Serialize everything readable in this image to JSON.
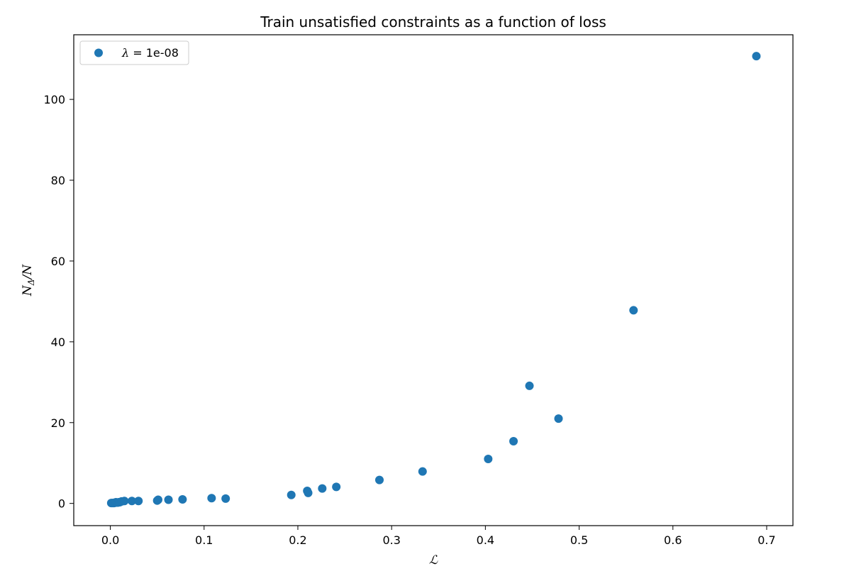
{
  "chart_data": {
    "type": "scatter",
    "title": "Train unsatisfied constraints as a function of loss",
    "xlabel": "ℒ",
    "ylabel_main": "N",
    "ylabel_sub": "Δ",
    "ylabel_tail": "/N",
    "xlim": [
      -0.039,
      0.728
    ],
    "ylim": [
      -5.5,
      116.0
    ],
    "xticks": [
      0.0,
      0.1,
      0.2,
      0.3,
      0.4,
      0.5,
      0.6,
      0.7
    ],
    "xtick_labels": [
      "0.0",
      "0.1",
      "0.2",
      "0.3",
      "0.4",
      "0.5",
      "0.6",
      "0.7"
    ],
    "yticks": [
      0,
      20,
      40,
      60,
      80,
      100
    ],
    "ytick_labels": [
      "0",
      "20",
      "40",
      "60",
      "80",
      "100"
    ],
    "grid": false,
    "legend_position": "top-left",
    "series": [
      {
        "name_symbol": "λ",
        "name_value": " = 1e-08",
        "color": "#1f77b4",
        "x": [
          0.001,
          0.002,
          0.003,
          0.004,
          0.005,
          0.006,
          0.007,
          0.008,
          0.009,
          0.01,
          0.012,
          0.015,
          0.023,
          0.03,
          0.05,
          0.051,
          0.062,
          0.077,
          0.108,
          0.123,
          0.193,
          0.21,
          0.211,
          0.226,
          0.241,
          0.287,
          0.333,
          0.403,
          0.43,
          0.447,
          0.478,
          0.558,
          0.689
        ],
        "y": [
          0.1,
          0.1,
          0.1,
          0.1,
          0.2,
          0.3,
          0.2,
          0.2,
          0.3,
          0.3,
          0.5,
          0.6,
          0.6,
          0.6,
          0.7,
          0.9,
          0.9,
          1.0,
          1.3,
          1.2,
          2.1,
          3.1,
          2.6,
          3.7,
          4.1,
          5.8,
          7.9,
          11.0,
          15.4,
          29.1,
          21.0,
          47.8,
          110.7
        ]
      }
    ]
  }
}
